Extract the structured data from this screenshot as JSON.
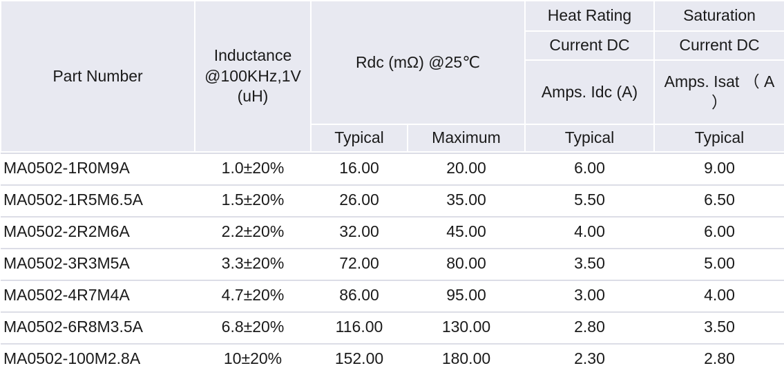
{
  "table": {
    "headers": {
      "part_number": "Part Number",
      "inductance_line1": "Inductance",
      "inductance_line2": "@100KHz,1V",
      "inductance_line3": "(uH)",
      "rdc": "Rdc  (mΩ)  @25℃",
      "heat_rating_line1": "Heat Rating",
      "heat_rating_line2": "Current DC",
      "heat_rating_line3": "Amps. Idc (A)",
      "saturation_line1": "Saturation",
      "saturation_line2": "Current  DC",
      "saturation_line3a": "Amps. Isat （ A",
      "saturation_line3b": "）",
      "rdc_typical": "Typical",
      "rdc_maximum": "Maximum",
      "idc_typical": "Typical",
      "isat_typical": "Typical"
    },
    "rows": [
      {
        "part": "MA0502-1R0M9A",
        "inductance": "1.0±20%",
        "rdc_typ": "16.00",
        "rdc_max": "20.00",
        "idc": "6.00",
        "isat": "9.00"
      },
      {
        "part": "MA0502-1R5M6.5A",
        "inductance": "1.5±20%",
        "rdc_typ": "26.00",
        "rdc_max": "35.00",
        "idc": "5.50",
        "isat": "6.50"
      },
      {
        "part": "MA0502-2R2M6A",
        "inductance": "2.2±20%",
        "rdc_typ": "32.00",
        "rdc_max": "45.00",
        "idc": "4.00",
        "isat": "6.00"
      },
      {
        "part": "MA0502-3R3M5A",
        "inductance": "3.3±20%",
        "rdc_typ": "72.00",
        "rdc_max": "80.00",
        "idc": "3.50",
        "isat": "5.00"
      },
      {
        "part": "MA0502-4R7M4A",
        "inductance": "4.7±20%",
        "rdc_typ": "86.00",
        "rdc_max": "95.00",
        "idc": "3.00",
        "isat": "4.00"
      },
      {
        "part": "MA0502-6R8M3.5A",
        "inductance": "6.8±20%",
        "rdc_typ": "116.00",
        "rdc_max": "130.00",
        "idc": "2.80",
        "isat": "3.50"
      },
      {
        "part": "MA0502-100M2.8A",
        "inductance": "10±20%",
        "rdc_typ": "152.00",
        "rdc_max": "180.00",
        "idc": "2.30",
        "isat": "2.80"
      }
    ]
  }
}
